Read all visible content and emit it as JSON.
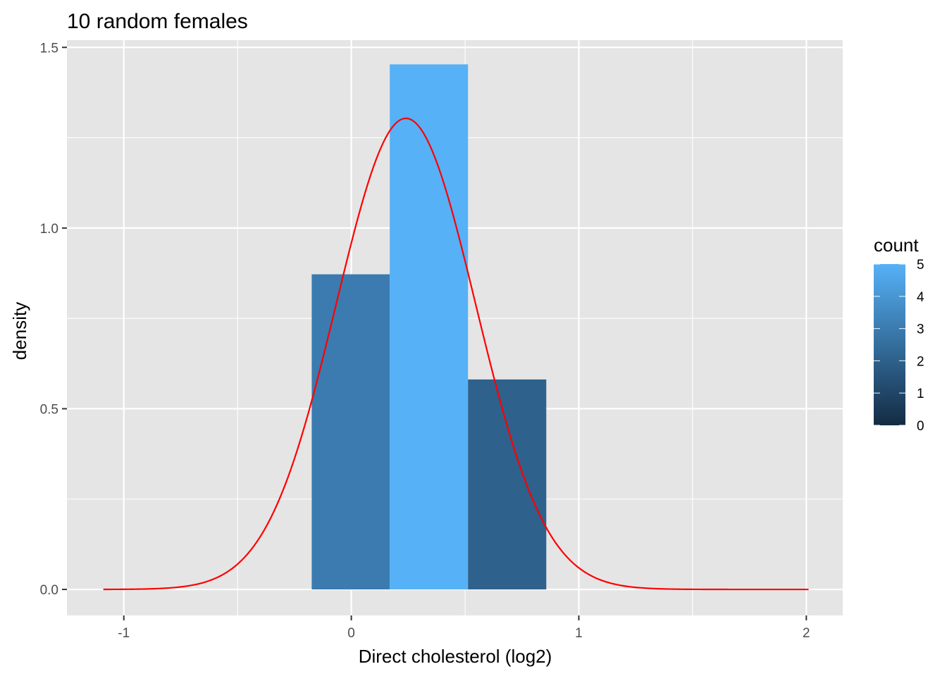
{
  "chart_data": {
    "type": "bar",
    "title": "10 random females",
    "xlabel": "Direct cholesterol (log2)",
    "ylabel": "density",
    "xlim": [
      -1.25,
      2.16
    ],
    "ylim": [
      -0.072,
      1.52
    ],
    "x_ticks": [
      -1,
      0,
      1,
      2
    ],
    "x_tick_labels": [
      "-1",
      "0",
      "1",
      "2"
    ],
    "y_ticks": [
      0.0,
      0.5,
      1.0,
      1.5
    ],
    "y_tick_labels": [
      "0.0",
      "0.5",
      "1.0",
      "1.5"
    ],
    "grid": true,
    "bins": [
      {
        "xmin": -0.174,
        "xmax": 0.169,
        "density": 0.872,
        "count": 3
      },
      {
        "xmin": 0.169,
        "xmax": 0.513,
        "density": 1.453,
        "count": 5
      },
      {
        "xmin": 0.513,
        "xmax": 0.857,
        "density": 0.581,
        "count": 2
      }
    ],
    "density_curve": {
      "color": "#ff0000",
      "mean": 0.24,
      "sd": 0.306,
      "x_range": [
        -1.09,
        2.01
      ]
    },
    "legend": {
      "title": "count",
      "position": "right",
      "breaks": [
        0,
        1,
        2,
        3,
        4,
        5
      ],
      "break_labels": [
        "0",
        "1",
        "2",
        "3",
        "4",
        "5"
      ],
      "low_color": "#132b43",
      "high_color": "#56b1f7"
    },
    "panel_background": "#e5e5e5",
    "grid_color": "#ffffff"
  }
}
